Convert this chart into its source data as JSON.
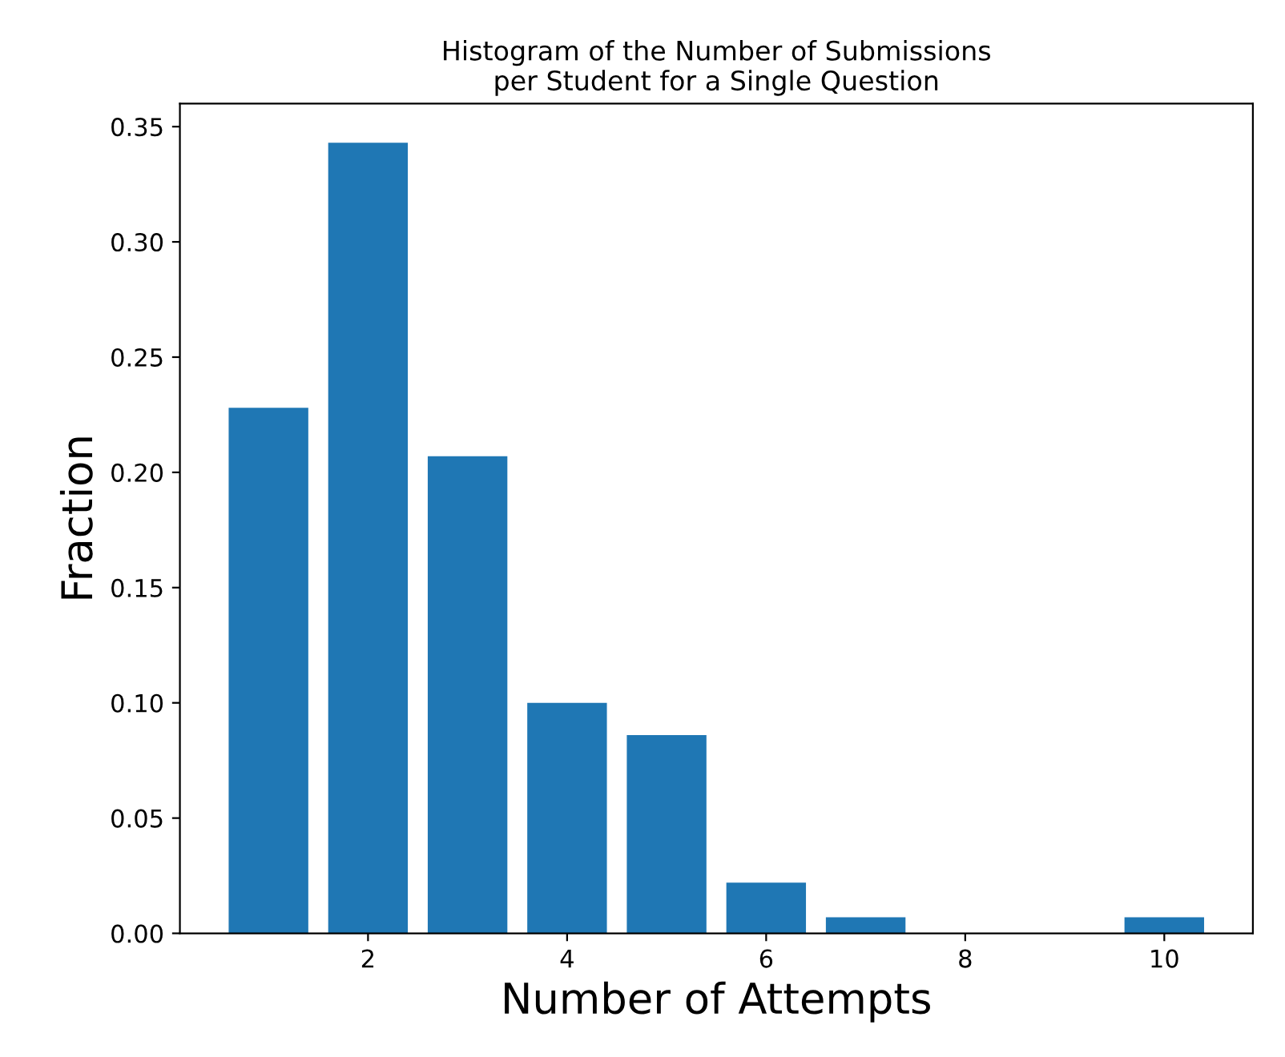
{
  "chart_data": {
    "type": "bar",
    "title": "Histogram of the Number of Submissions\nper Student for a Single Question",
    "xlabel": "Number of Attempts",
    "ylabel": "Fraction",
    "x": [
      1,
      2,
      3,
      4,
      5,
      6,
      7,
      8,
      9,
      10
    ],
    "values": [
      0.228,
      0.343,
      0.207,
      0.1,
      0.086,
      0.022,
      0.007,
      0,
      0,
      0.007
    ],
    "color": "#1f77b4",
    "xlim": [
      0.11,
      10.89
    ],
    "xticks": [
      2,
      4,
      6,
      8,
      10
    ],
    "ylim": [
      0,
      0.36
    ],
    "yticks": [
      {
        "value": 0,
        "label": "0.00"
      },
      {
        "value": 0.05,
        "label": "0.05"
      },
      {
        "value": 0.1,
        "label": "0.10"
      },
      {
        "value": 0.15,
        "label": "0.15"
      },
      {
        "value": 0.2,
        "label": "0.20"
      },
      {
        "value": 0.25,
        "label": "0.25"
      },
      {
        "value": 0.3,
        "label": "0.30"
      },
      {
        "value": 0.35,
        "label": "0.35"
      }
    ],
    "grid": false,
    "legend": false
  }
}
